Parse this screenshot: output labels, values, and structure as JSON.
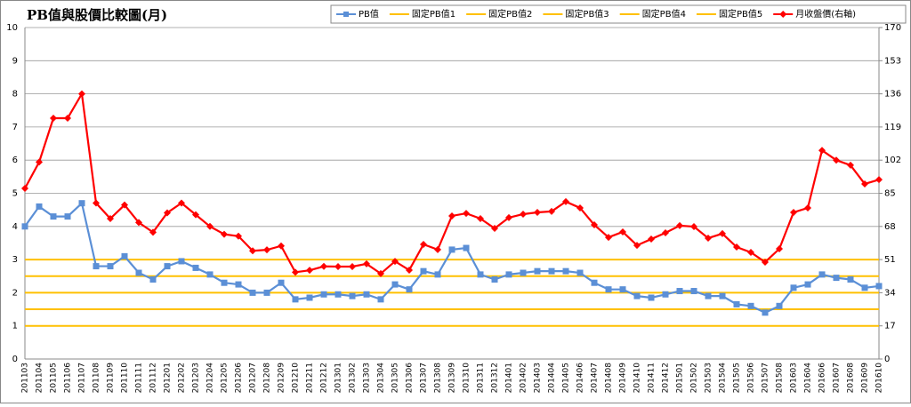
{
  "chart_data": {
    "type": "line",
    "title": "PB值與股價比較圖(月)",
    "categories": [
      "201103",
      "201104",
      "201105",
      "201106",
      "201107",
      "201108",
      "201109",
      "201110",
      "201111",
      "201112",
      "201201",
      "201202",
      "201203",
      "201204",
      "201205",
      "201206",
      "201207",
      "201208",
      "201209",
      "201210",
      "201211",
      "201212",
      "201301",
      "201302",
      "201303",
      "201304",
      "201305",
      "201306",
      "201307",
      "201308",
      "201309",
      "201310",
      "201311",
      "201312",
      "201401",
      "201402",
      "201403",
      "201404",
      "201405",
      "201406",
      "201407",
      "201408",
      "201409",
      "201410",
      "201411",
      "201412",
      "201501",
      "201502",
      "201503",
      "201504",
      "201505",
      "201506",
      "201507",
      "201508",
      "201603",
      "201604",
      "201606",
      "201607",
      "201608",
      "201609",
      "201610"
    ],
    "series": [
      {
        "name": "PB值",
        "color": "#5b8fd6",
        "marker": "square",
        "values": [
          4.0,
          4.6,
          4.3,
          4.3,
          4.7,
          2.8,
          2.8,
          3.1,
          2.6,
          2.4,
          2.8,
          2.95,
          2.75,
          2.55,
          2.3,
          2.25,
          2.0,
          2.0,
          2.3,
          1.8,
          1.85,
          1.95,
          1.95,
          1.9,
          1.95,
          1.8,
          2.25,
          2.1,
          2.65,
          2.55,
          3.3,
          3.35,
          2.55,
          2.4,
          2.55,
          2.6,
          2.65,
          2.65,
          2.65,
          2.6,
          2.3,
          2.1,
          2.1,
          1.9,
          1.85,
          1.95,
          2.05,
          2.05,
          1.9,
          1.9,
          1.65,
          1.6,
          1.4,
          1.6,
          2.15,
          2.25,
          2.55,
          2.45,
          2.4,
          2.15,
          2.2
        ]
      },
      {
        "name": "固定PB值1",
        "color": "#ffc000",
        "marker": "none",
        "values": [
          1,
          1,
          1,
          1,
          1,
          1,
          1,
          1,
          1,
          1,
          1,
          1,
          1,
          1,
          1,
          1,
          1,
          1,
          1,
          1,
          1,
          1,
          1,
          1,
          1,
          1,
          1,
          1,
          1,
          1,
          1,
          1,
          1,
          1,
          1,
          1,
          1,
          1,
          1,
          1,
          1,
          1,
          1,
          1,
          1,
          1,
          1,
          1,
          1,
          1,
          1,
          1,
          1,
          1,
          1,
          1,
          1,
          1,
          1,
          1,
          1
        ]
      },
      {
        "name": "固定PB值2",
        "color": "#ffc000",
        "marker": "none",
        "values": [
          1.5,
          1.5,
          1.5,
          1.5,
          1.5,
          1.5,
          1.5,
          1.5,
          1.5,
          1.5,
          1.5,
          1.5,
          1.5,
          1.5,
          1.5,
          1.5,
          1.5,
          1.5,
          1.5,
          1.5,
          1.5,
          1.5,
          1.5,
          1.5,
          1.5,
          1.5,
          1.5,
          1.5,
          1.5,
          1.5,
          1.5,
          1.5,
          1.5,
          1.5,
          1.5,
          1.5,
          1.5,
          1.5,
          1.5,
          1.5,
          1.5,
          1.5,
          1.5,
          1.5,
          1.5,
          1.5,
          1.5,
          1.5,
          1.5,
          1.5,
          1.5,
          1.5,
          1.5,
          1.5,
          1.5,
          1.5,
          1.5,
          1.5,
          1.5,
          1.5,
          1.5
        ]
      },
      {
        "name": "固定PB值3",
        "color": "#ffc000",
        "marker": "none",
        "values": [
          2,
          2,
          2,
          2,
          2,
          2,
          2,
          2,
          2,
          2,
          2,
          2,
          2,
          2,
          2,
          2,
          2,
          2,
          2,
          2,
          2,
          2,
          2,
          2,
          2,
          2,
          2,
          2,
          2,
          2,
          2,
          2,
          2,
          2,
          2,
          2,
          2,
          2,
          2,
          2,
          2,
          2,
          2,
          2,
          2,
          2,
          2,
          2,
          2,
          2,
          2,
          2,
          2,
          2,
          2,
          2,
          2,
          2,
          2,
          2,
          2
        ]
      },
      {
        "name": "固定PB值4",
        "color": "#ffc000",
        "marker": "none",
        "values": [
          2.5,
          2.5,
          2.5,
          2.5,
          2.5,
          2.5,
          2.5,
          2.5,
          2.5,
          2.5,
          2.5,
          2.5,
          2.5,
          2.5,
          2.5,
          2.5,
          2.5,
          2.5,
          2.5,
          2.5,
          2.5,
          2.5,
          2.5,
          2.5,
          2.5,
          2.5,
          2.5,
          2.5,
          2.5,
          2.5,
          2.5,
          2.5,
          2.5,
          2.5,
          2.5,
          2.5,
          2.5,
          2.5,
          2.5,
          2.5,
          2.5,
          2.5,
          2.5,
          2.5,
          2.5,
          2.5,
          2.5,
          2.5,
          2.5,
          2.5,
          2.5,
          2.5,
          2.5,
          2.5,
          2.5,
          2.5,
          2.5,
          2.5,
          2.5,
          2.5,
          2.5
        ]
      },
      {
        "name": "固定PB值5",
        "color": "#ffc000",
        "marker": "none",
        "values": [
          3,
          3,
          3,
          3,
          3,
          3,
          3,
          3,
          3,
          3,
          3,
          3,
          3,
          3,
          3,
          3,
          3,
          3,
          3,
          3,
          3,
          3,
          3,
          3,
          3,
          3,
          3,
          3,
          3,
          3,
          3,
          3,
          3,
          3,
          3,
          3,
          3,
          3,
          3,
          3,
          3,
          3,
          3,
          3,
          3,
          3,
          3,
          3,
          3,
          3,
          3,
          3,
          3,
          3,
          3,
          3,
          3,
          3,
          3,
          3,
          3
        ]
      },
      {
        "name": "月收盤價(右軸)",
        "color": "#ff0000",
        "marker": "diamond",
        "axis": "y2",
        "values": [
          87.5,
          101,
          123.5,
          123.5,
          136,
          80,
          72,
          79,
          70,
          65,
          75,
          80,
          74,
          68,
          64,
          63,
          55.5,
          56,
          58,
          44.5,
          45.5,
          47.5,
          47.4,
          47.4,
          48.8,
          43.8,
          50.1,
          45.6,
          58.8,
          56.1,
          73.4,
          74.7,
          72,
          67,
          72.5,
          74.3,
          75.2,
          75.7,
          80.7,
          77.5,
          68.8,
          62.4,
          65.2,
          58.3,
          61.5,
          64.7,
          68.4,
          67.9,
          62,
          64.3,
          57.4,
          54.7,
          49.7,
          56.5,
          75.2,
          77.5,
          107,
          102,
          99.4,
          89.8,
          92
        ]
      }
    ],
    "ylim": [
      0,
      10
    ],
    "yticks": [
      0,
      1,
      2,
      3,
      4,
      5,
      6,
      7,
      8,
      9,
      10
    ],
    "y2lim": [
      0,
      170
    ],
    "y2ticks": [
      0,
      17,
      34,
      51,
      68,
      85,
      102,
      119,
      136,
      153,
      170
    ],
    "grid": true,
    "legend": "top-right"
  }
}
